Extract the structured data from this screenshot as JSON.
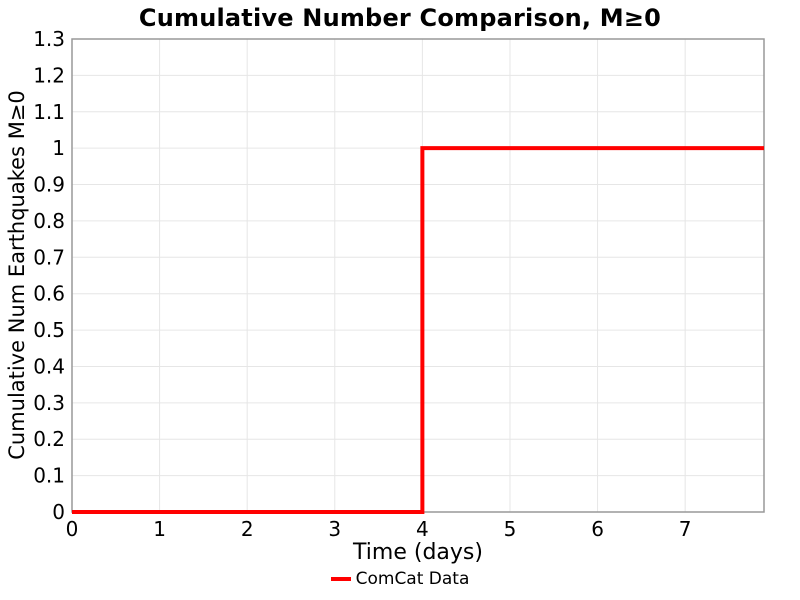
{
  "figure": {
    "background": "#ffffff"
  },
  "chart_data": {
    "type": "line",
    "step": true,
    "title": "Cumulative Number Comparison, M≥0",
    "xlabel": "Time (days)",
    "ylabel": "Cumulative Num Earthquakes M≥0",
    "xlim": [
      0,
      7.9
    ],
    "ylim": [
      0,
      1.3
    ],
    "xticks": [
      0,
      1,
      2,
      3,
      4,
      5,
      6,
      7
    ],
    "yticks": [
      0,
      0.1,
      0.2,
      0.3,
      0.4,
      0.5,
      0.6,
      0.7,
      0.8,
      0.9,
      1,
      1.1,
      1.2,
      1.3
    ],
    "grid": true,
    "legend": {
      "position": "bottom-center",
      "entries": [
        {
          "label": "ComCat Data",
          "color": "#ff0000"
        }
      ]
    },
    "series": [
      {
        "name": "ComCat Data",
        "color": "#ff0000",
        "line_width": 4,
        "x": [
          0,
          4,
          4,
          7.9
        ],
        "y": [
          0,
          0,
          1,
          1
        ]
      }
    ],
    "colors": {
      "grid": "#e6e6e6",
      "axis_border": "#999999",
      "text": "#000000",
      "background": "#ffffff"
    }
  }
}
